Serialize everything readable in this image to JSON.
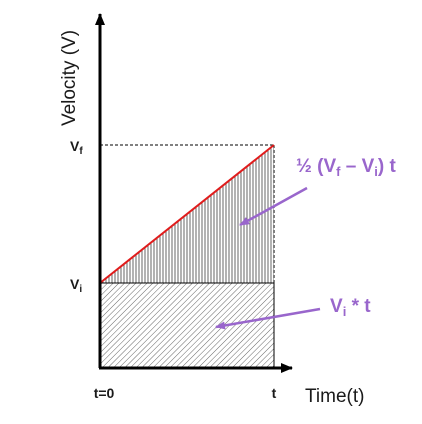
{
  "axes": {
    "y_title": "Velocity (V)",
    "x_title": "Time(t)"
  },
  "ticks": {
    "vf_main": "V",
    "vf_sub": "f",
    "vi_main": "V",
    "vi_sub": "i",
    "t0": "t=0",
    "t": "t"
  },
  "annotations": {
    "triangle": {
      "a": "½ (V",
      "sub1": "f",
      "b": " – V",
      "sub2": "i",
      "c": ") t"
    },
    "rectangle": {
      "a": "V",
      "sub": "i",
      "b": " * t"
    }
  },
  "colors": {
    "axis": "#000000",
    "velocity_line": "#e01c1c",
    "annotation": "#9966cc",
    "hatch": "#555555"
  }
}
